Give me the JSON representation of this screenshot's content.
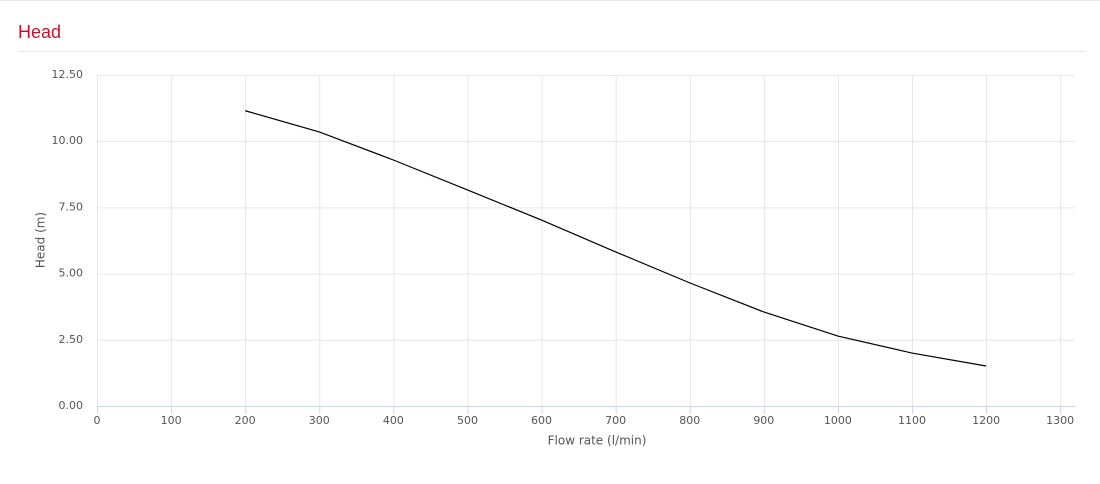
{
  "chart_data": {
    "type": "line",
    "title": "Head",
    "x_label": "Flow rate (l/min)",
    "y_label": "Head (m)",
    "x": [
      200,
      300,
      400,
      500,
      600,
      700,
      800,
      900,
      1000,
      1100,
      1200
    ],
    "series": [
      {
        "name": "Head",
        "color": "#000000",
        "values": [
          11.15,
          10.35,
          9.29,
          8.16,
          7.02,
          5.82,
          4.65,
          3.55,
          2.64,
          2.0,
          1.51
        ]
      }
    ],
    "xlim": [
      0,
      1320
    ],
    "xticks": [
      0,
      100,
      200,
      300,
      400,
      500,
      600,
      700,
      800,
      900,
      1000,
      1100,
      1200,
      1300
    ],
    "ylim": [
      0,
      12.5
    ],
    "yticks": [
      {
        "value": 0,
        "label": "0.00"
      },
      {
        "value": 2.5,
        "label": "2.50"
      },
      {
        "value": 5,
        "label": "5.00"
      },
      {
        "value": 7.5,
        "label": "7.50"
      },
      {
        "value": 10,
        "label": "10.00"
      },
      {
        "value": 12.5,
        "label": "12.50"
      }
    ],
    "grid": true
  }
}
